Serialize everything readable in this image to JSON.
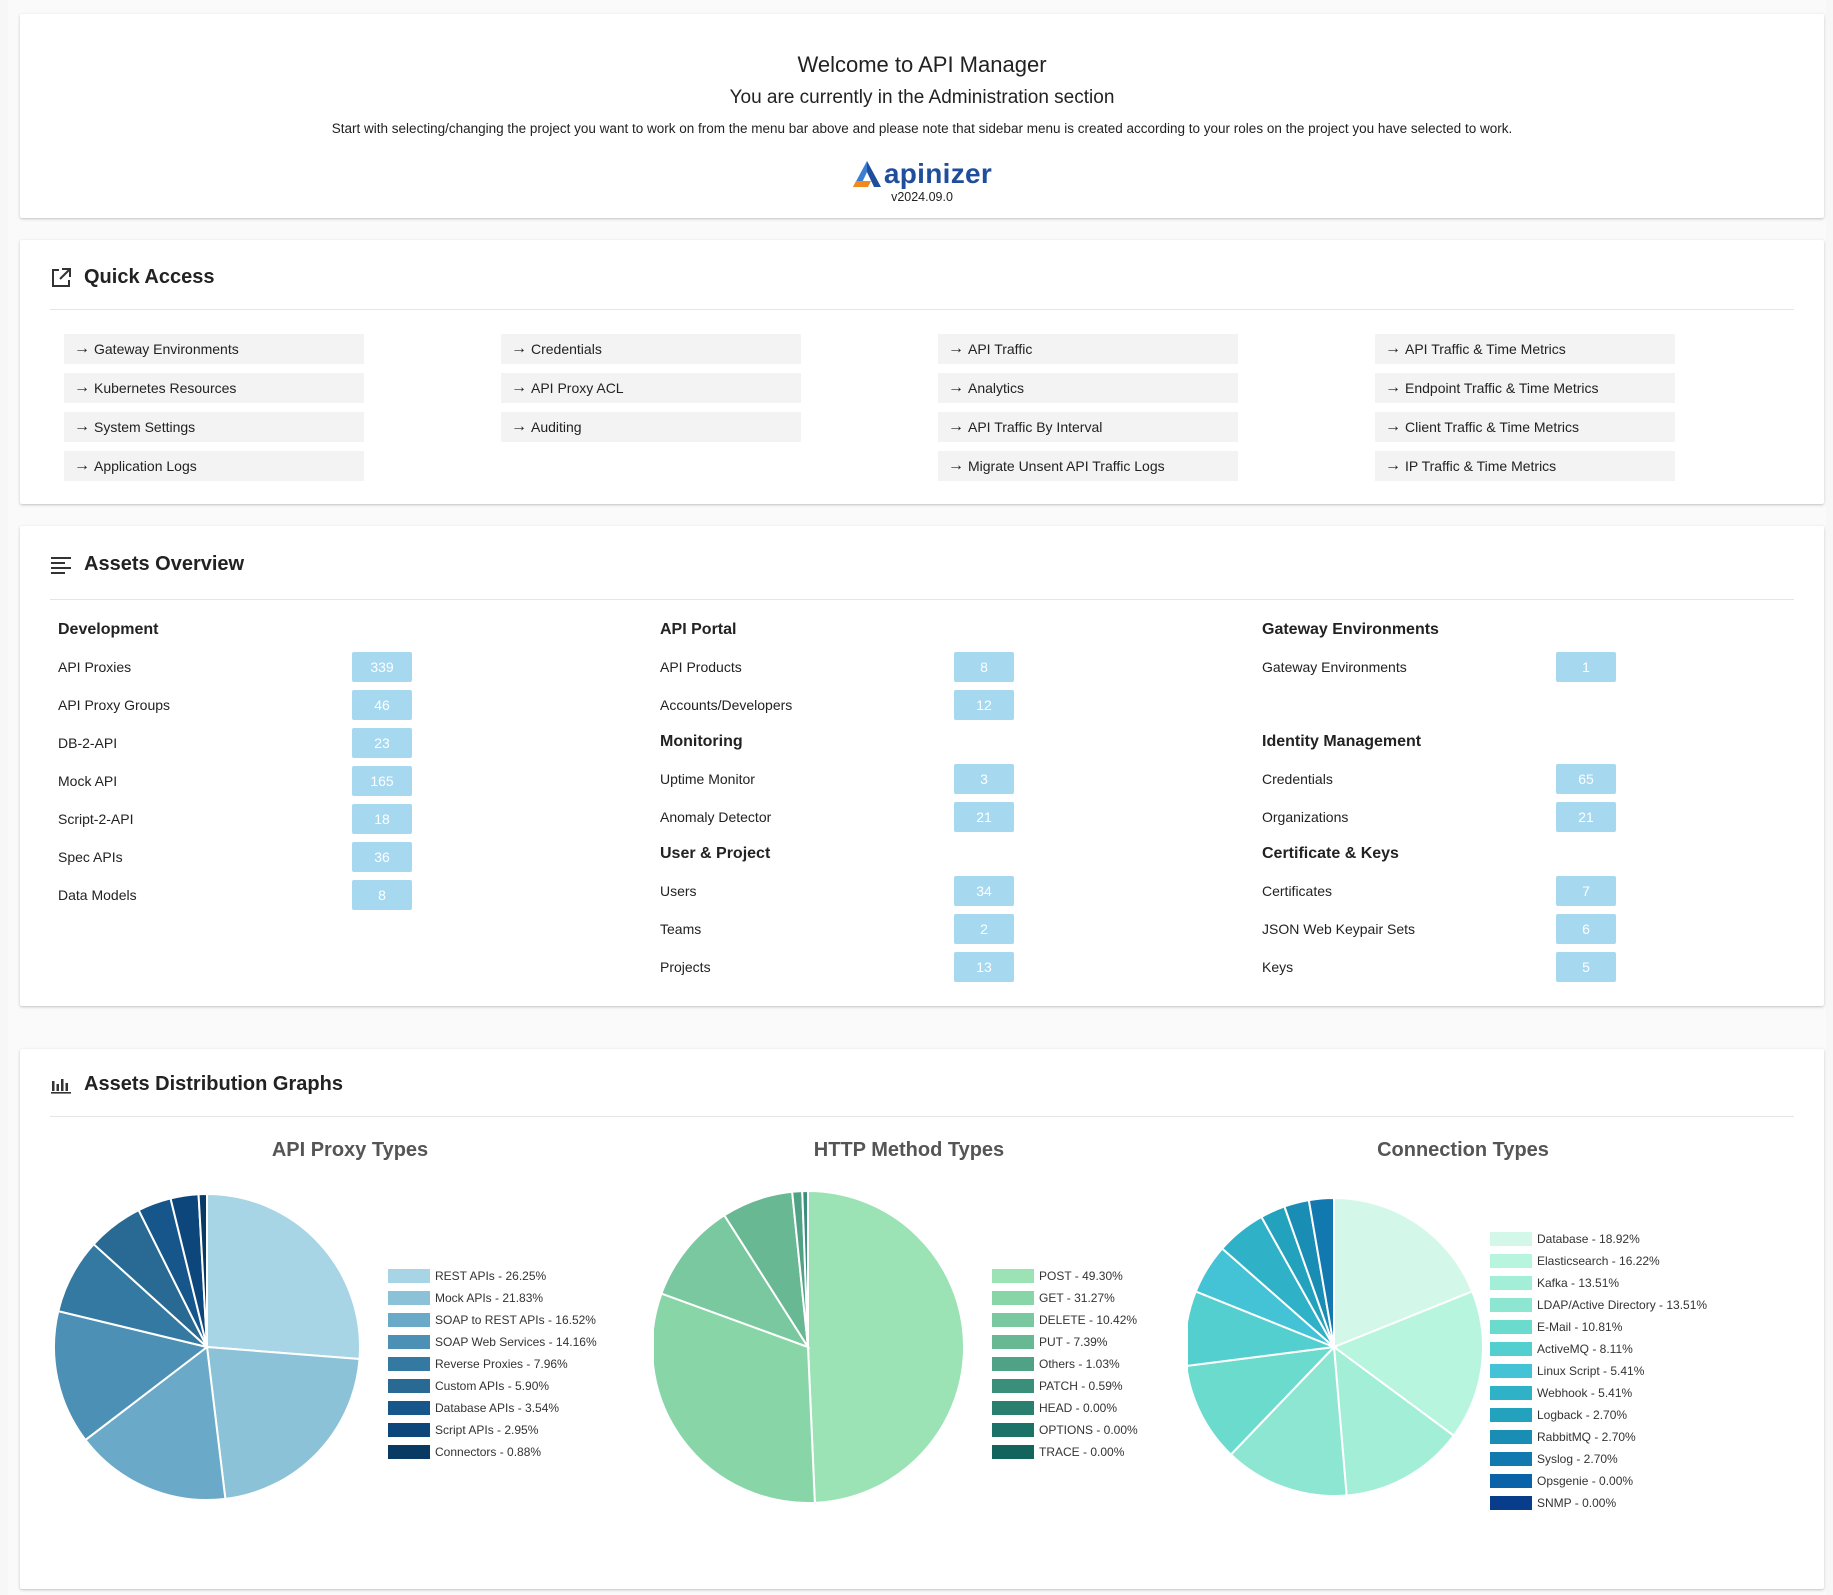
{
  "welcome": {
    "title": "Welcome to API Manager",
    "subtitle": "You are currently in the Administration section",
    "description": "Start with selecting/changing the project you want to work on from the menu bar above and please note that sidebar menu is created according to your roles on the project you have selected to work.",
    "logo_text": "apinizer",
    "version": "v2024.09.0"
  },
  "quick_access": {
    "title": "Quick Access",
    "columns": [
      [
        "Gateway Environments",
        "Kubernetes Resources",
        "System Settings",
        "Application Logs"
      ],
      [
        "Credentials",
        "API Proxy ACL",
        "Auditing"
      ],
      [
        "API Traffic",
        "Analytics",
        "API Traffic By Interval",
        "Migrate Unsent API Traffic Logs"
      ],
      [
        "API Traffic & Time Metrics",
        "Endpoint Traffic & Time Metrics",
        "Client Traffic & Time Metrics",
        "IP Traffic & Time Metrics"
      ]
    ]
  },
  "assets": {
    "title": "Assets Overview",
    "columns": [
      [
        {
          "group": "Development",
          "rows": [
            {
              "label": "API Proxies",
              "value": "339"
            },
            {
              "label": "API Proxy Groups",
              "value": "46"
            },
            {
              "label": "DB-2-API",
              "value": "23"
            },
            {
              "label": "Mock API",
              "value": "165"
            },
            {
              "label": "Script-2-API",
              "value": "18"
            },
            {
              "label": "Spec APIs",
              "value": "36"
            },
            {
              "label": "Data Models",
              "value": "8"
            }
          ]
        }
      ],
      [
        {
          "group": "API Portal",
          "rows": [
            {
              "label": "API Products",
              "value": "8"
            },
            {
              "label": "Accounts/Developers",
              "value": "12"
            }
          ]
        },
        {
          "group": "Monitoring",
          "rows": [
            {
              "label": "Uptime Monitor",
              "value": "3"
            },
            {
              "label": "Anomaly Detector",
              "value": "21"
            }
          ]
        },
        {
          "group": "User & Project",
          "rows": [
            {
              "label": "Users",
              "value": "34"
            },
            {
              "label": "Teams",
              "value": "2"
            },
            {
              "label": "Projects",
              "value": "13"
            }
          ]
        }
      ],
      [
        {
          "group": "Gateway Environments",
          "rows": [
            {
              "label": "Gateway Environments",
              "value": "1"
            }
          ]
        },
        {
          "group": "Identity Management",
          "rows": [
            {
              "label": "Credentials",
              "value": "65"
            },
            {
              "label": "Organizations",
              "value": "21"
            }
          ]
        },
        {
          "group": "Certificate & Keys",
          "rows": [
            {
              "label": "Certificates",
              "value": "7"
            },
            {
              "label": "JSON Web Keypair Sets",
              "value": "6"
            },
            {
              "label": "Keys",
              "value": "5"
            }
          ]
        }
      ]
    ]
  },
  "graphs": {
    "title": "Assets Distribution Graphs"
  },
  "chart_data": [
    {
      "type": "pie",
      "title": "API Proxy Types",
      "slices": [
        {
          "label": "REST APIs - 26.25%",
          "value": 26.25,
          "color": "#a8d5e5"
        },
        {
          "label": "Mock APIs - 21.83%",
          "value": 21.83,
          "color": "#8cc2d8"
        },
        {
          "label": "SOAP to REST APIs - 16.52%",
          "value": 16.52,
          "color": "#6aa9c8"
        },
        {
          "label": "SOAP Web Services - 14.16%",
          "value": 14.16,
          "color": "#4d90b5"
        },
        {
          "label": "Reverse Proxies - 7.96%",
          "value": 7.96,
          "color": "#3479a2"
        },
        {
          "label": "Custom APIs - 5.90%",
          "value": 5.9,
          "color": "#286a94"
        },
        {
          "label": "Database APIs - 3.54%",
          "value": 3.54,
          "color": "#16568a"
        },
        {
          "label": "Script APIs - 2.95%",
          "value": 2.95,
          "color": "#0c467a"
        },
        {
          "label": "Connectors - 0.88%",
          "value": 0.88,
          "color": "#083a63"
        }
      ]
    },
    {
      "type": "pie",
      "title": "HTTP Method Types",
      "slices": [
        {
          "label": "POST - 49.30%",
          "value": 49.3,
          "color": "#9be3b5"
        },
        {
          "label": "GET - 31.27%",
          "value": 31.27,
          "color": "#88d6a8"
        },
        {
          "label": "DELETE - 10.42%",
          "value": 10.42,
          "color": "#79c89f"
        },
        {
          "label": "PUT - 7.39%",
          "value": 7.39,
          "color": "#68b893"
        },
        {
          "label": "Others - 1.03%",
          "value": 1.03,
          "color": "#4fa285"
        },
        {
          "label": "PATCH - 0.59%",
          "value": 0.59,
          "color": "#3a8f7a"
        },
        {
          "label": "HEAD - 0.00%",
          "value": 0.0,
          "color": "#2a7f6f"
        },
        {
          "label": "OPTIONS - 0.00%",
          "value": 0.0,
          "color": "#1d7267"
        },
        {
          "label": "TRACE - 0.00%",
          "value": 0.0,
          "color": "#12645c"
        }
      ]
    },
    {
      "type": "pie",
      "title": "Connection Types",
      "slices": [
        {
          "label": "Database - 18.92%",
          "value": 18.92,
          "color": "#d3f8ea"
        },
        {
          "label": "Elasticsearch - 16.22%",
          "value": 16.22,
          "color": "#b7f5de"
        },
        {
          "label": "Kafka - 13.51%",
          "value": 13.51,
          "color": "#a2eed6"
        },
        {
          "label": "LDAP/Active Directory - 13.51%",
          "value": 13.51,
          "color": "#8de6d2"
        },
        {
          "label": "E-Mail - 10.81%",
          "value": 10.81,
          "color": "#6bdbce"
        },
        {
          "label": "ActiveMQ - 8.11%",
          "value": 8.11,
          "color": "#54cfd0"
        },
        {
          "label": "Linux Script - 5.41%",
          "value": 5.41,
          "color": "#44c2d6"
        },
        {
          "label": "Webhook - 5.41%",
          "value": 5.41,
          "color": "#2fb2c8"
        },
        {
          "label": "Logback - 2.70%",
          "value": 2.7,
          "color": "#23a2bd"
        },
        {
          "label": "RabbitMQ - 2.70%",
          "value": 2.7,
          "color": "#1a8db4"
        },
        {
          "label": "Syslog - 2.70%",
          "value": 2.7,
          "color": "#1178b0"
        },
        {
          "label": "Opsgenie - 0.00%",
          "value": 0.0,
          "color": "#0a63a8"
        },
        {
          "label": "SNMP - 0.00%",
          "value": 0.0,
          "color": "#083d8c"
        }
      ]
    }
  ]
}
